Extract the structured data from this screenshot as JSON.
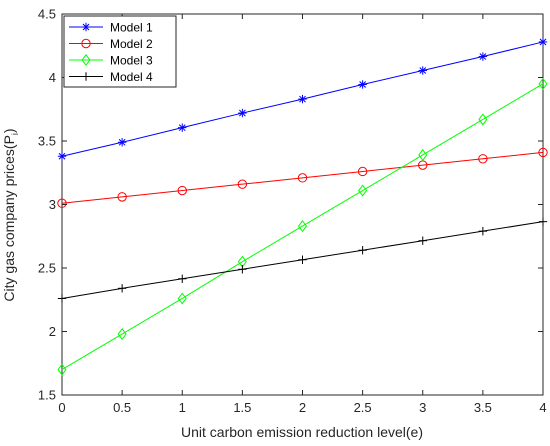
{
  "chart_data": {
    "type": "line",
    "title": "",
    "xlabel": "Unit carbon emission reduction level(e)",
    "ylabel": {
      "main": "City gas company prices(P",
      "sub": "i",
      "close": ")"
    },
    "x": [
      0,
      0.5,
      1,
      1.5,
      2,
      2.5,
      3,
      3.5,
      4
    ],
    "xlim": [
      0,
      4
    ],
    "ylim": [
      1.5,
      4.5
    ],
    "xticks": [
      "0",
      "0.5",
      "1",
      "1.5",
      "2",
      "2.5",
      "3",
      "3.5",
      "4"
    ],
    "yticks": [
      "1.5",
      "2",
      "2.5",
      "3",
      "3.5",
      "4",
      "4.5"
    ],
    "grid": false,
    "legend_position": "top-left",
    "series": [
      {
        "name": "Model 1",
        "color": "#0000ff",
        "marker": "asterisk",
        "values": [
          3.38,
          3.49,
          3.605,
          3.72,
          3.83,
          3.945,
          4.055,
          4.165,
          4.28
        ]
      },
      {
        "name": "Model 2",
        "color": "#ff0000",
        "marker": "circle",
        "values": [
          3.01,
          3.06,
          3.11,
          3.16,
          3.21,
          3.26,
          3.31,
          3.36,
          3.41
        ]
      },
      {
        "name": "Model 3",
        "color": "#00ff00",
        "marker": "diamond",
        "values": [
          1.7,
          1.98,
          2.26,
          2.55,
          2.83,
          3.11,
          3.39,
          3.67,
          3.95
        ]
      },
      {
        "name": "Model 4",
        "color": "#000000",
        "marker": "plus",
        "values": [
          2.26,
          2.34,
          2.415,
          2.49,
          2.565,
          2.64,
          2.715,
          2.79,
          2.865
        ]
      }
    ]
  }
}
